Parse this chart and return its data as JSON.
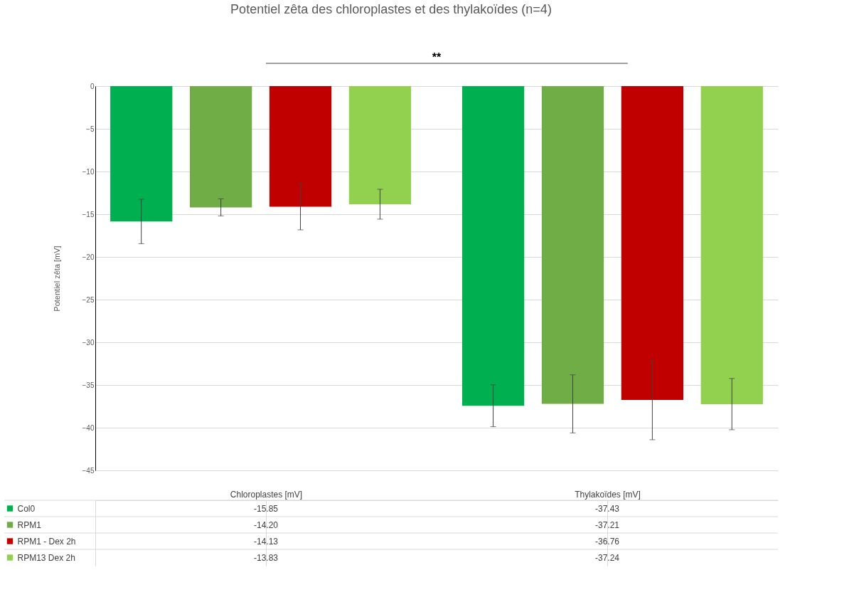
{
  "chart_data": {
    "type": "bar",
    "title": "Potentiel zêta des chloroplastes et des thylakoïdes (n=4)",
    "ylabel": "Potentiel zêta [mV]",
    "categories": [
      "Chloroplastes [mV]",
      "Thylakoïdes [mV]"
    ],
    "series": [
      {
        "name": "Col0",
        "color": "#00b050",
        "values": [
          -15.85,
          -37.43
        ],
        "value_labels": [
          "-15.85",
          "-37.43"
        ],
        "errors": [
          2.6,
          2.45
        ]
      },
      {
        "name": "RPM1",
        "color": "#70ad47",
        "values": [
          -14.2,
          -37.21
        ],
        "value_labels": [
          "-14.20",
          "-37.21"
        ],
        "errors": [
          1.0,
          3.4
        ]
      },
      {
        "name": "RPM1 - Dex 2h",
        "color": "#c00000",
        "values": [
          -14.13,
          -36.76
        ],
        "value_labels": [
          "-14.13",
          "-36.76"
        ],
        "errors": [
          2.7,
          4.65
        ]
      },
      {
        "name": "RPM13 Dex 2h",
        "color": "#92d050",
        "values": [
          -13.83,
          -37.24
        ],
        "value_labels": [
          "-13.83",
          "-37.24"
        ],
        "errors": [
          1.75,
          3.0
        ]
      }
    ],
    "ylim": [
      -45,
      0
    ],
    "yticks": [
      -45,
      -40,
      -35,
      -30,
      -25,
      -20,
      -15,
      -10,
      -5,
      0
    ],
    "grid": "y",
    "legend": "bottom",
    "annotations": [
      "**"
    ]
  }
}
